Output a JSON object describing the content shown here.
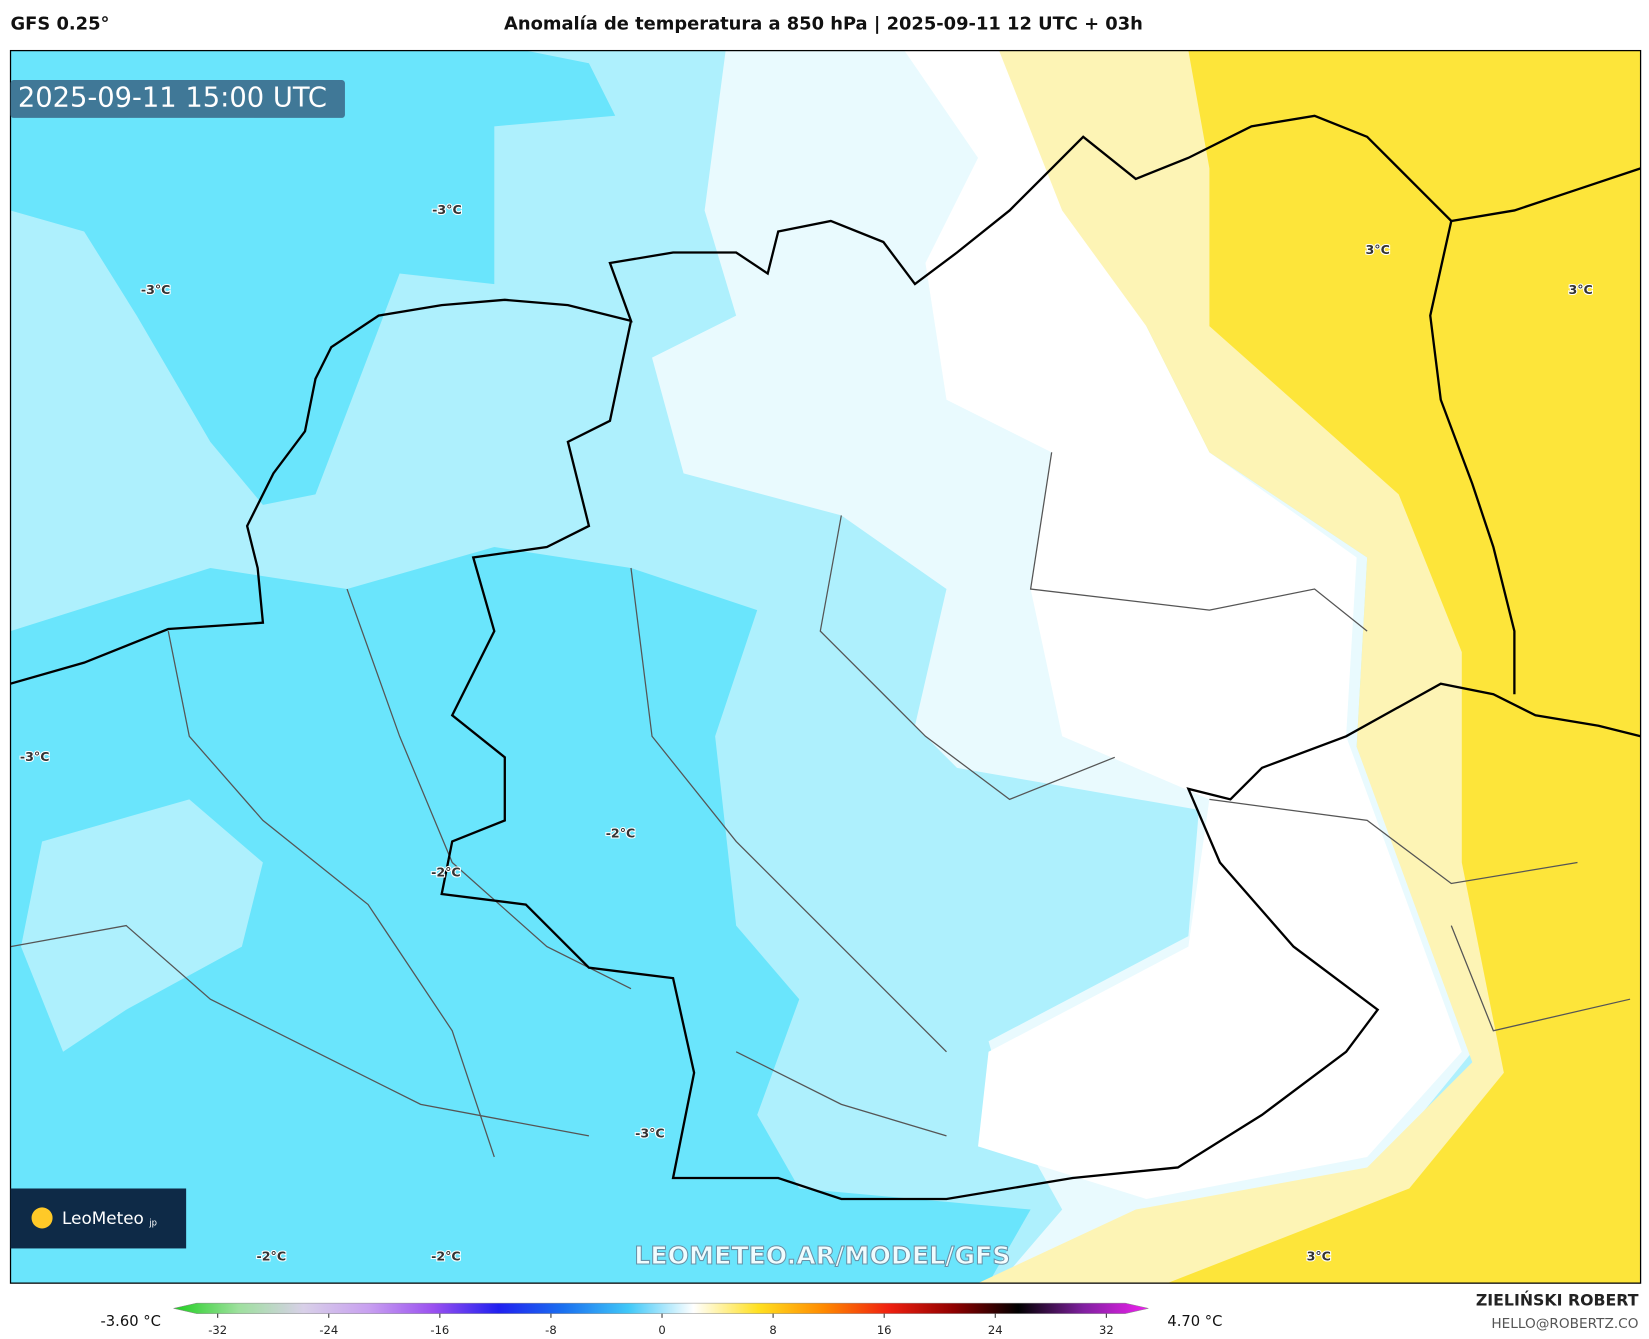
{
  "header": {
    "model": "GFS 0.25°",
    "title": "Anomalía de temperatura a 850 hPa | 2025-09-11 12 UTC + 03h"
  },
  "map": {
    "valid_time": "2025-09-11 15:00 UTC",
    "contour_labels": [
      "-3°C",
      "-3°C",
      "3°C",
      "3°C",
      "-3°C",
      "-2°C",
      "-2°C",
      "-3°C",
      "-2°C",
      "-2°C",
      "3°C"
    ],
    "watermark": "LEOMETEO.AR/MODEL/GFS",
    "logo": {
      "name": "LeoMeteo",
      "suffix": "jp"
    }
  },
  "colorbar": {
    "min_label": "-3.60 °C",
    "max_label": "4.70 °C",
    "ticks": [
      -32,
      -24,
      -16,
      -8,
      0,
      8,
      16,
      24,
      32
    ],
    "colors": [
      "#1fcf1f",
      "#9ee09e",
      "#d8d0e8",
      "#c8a0f0",
      "#9a50f0",
      "#2020f0",
      "#1a70f0",
      "#40c8f8",
      "#ffffff",
      "#ffe020",
      "#ff8a00",
      "#f02010",
      "#900000",
      "#000000",
      "#8020a0",
      "#f020f0"
    ]
  },
  "footer": {
    "author": "ZIELIŃSKI ROBERT",
    "email": "HELLO@ROBERTZ.CO"
  }
}
